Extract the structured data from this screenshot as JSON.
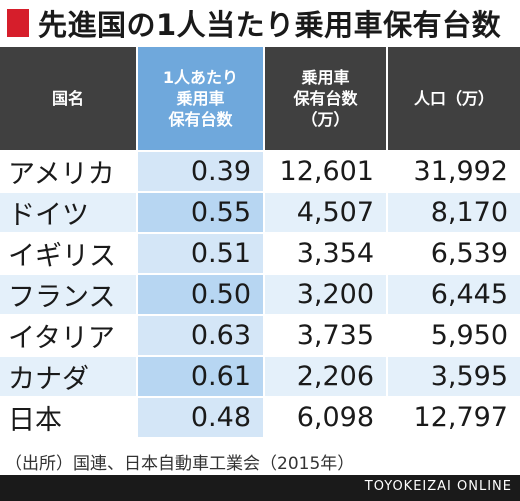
{
  "title": "先進国の1人当たり乗用車保有台数",
  "accent_color": "#d61e2b",
  "header_bg": "#404040",
  "highlight_header_bg": "#6fa8dc",
  "headers": {
    "country": [
      "国名"
    ],
    "per_capita": [
      "1人あたり",
      "乗用車",
      "保有台数"
    ],
    "cars": [
      "乗用車",
      "保有台数",
      "（万）"
    ],
    "population": [
      "人口（万）"
    ]
  },
  "rows": [
    {
      "country": "アメリカ",
      "per_capita": "0.39",
      "cars": "12,601",
      "population": "31,992"
    },
    {
      "country": "ドイツ",
      "per_capita": "0.55",
      "cars": "4,507",
      "population": "8,170"
    },
    {
      "country": "イギリス",
      "per_capita": "0.51",
      "cars": "3,354",
      "population": "6,539"
    },
    {
      "country": "フランス",
      "per_capita": "0.50",
      "cars": "3,200",
      "population": "6,445"
    },
    {
      "country": "イタリア",
      "per_capita": "0.63",
      "cars": "3,735",
      "population": "5,950"
    },
    {
      "country": "カナダ",
      "per_capita": "0.61",
      "cars": "2,206",
      "population": "3,595"
    },
    {
      "country": "日本",
      "per_capita": "0.48",
      "cars": "6,098",
      "population": "12,797"
    }
  ],
  "source": "（出所）国連、日本自動車工業会（2015年）",
  "brand": "TOYOKEIZAI ONLINE"
}
